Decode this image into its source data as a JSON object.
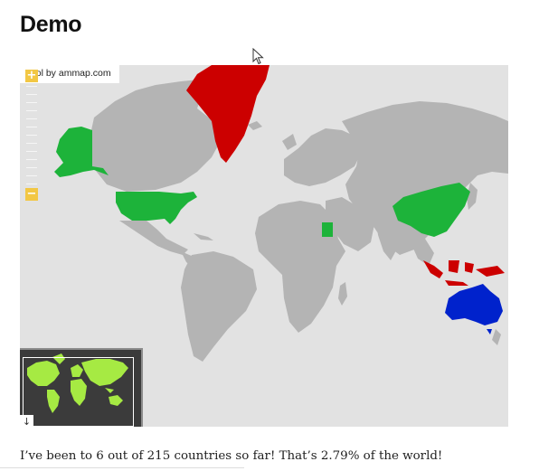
{
  "page": {
    "title": "Demo"
  },
  "map": {
    "credit": "tool by ammap.com",
    "zoom_in_label": "+",
    "zoom_out_label": "−",
    "minimap_toggle_icon": "arrow-down-icon",
    "minimap_toggle_label": "↓",
    "colors": {
      "ocean": "#e2e2e2",
      "land": "#b4b4b4",
      "visited": "#1db33a",
      "greenland": "#cc0000",
      "indonesia": "#cc0000",
      "australia": "#0022cc",
      "zoom_control": "#f2c744",
      "minimap_background": "#3b3b3b",
      "minimap_land": "#a6ea43"
    },
    "highlighted_regions": [
      "Greenland",
      "Alaska",
      "United States",
      "Egypt",
      "China",
      "Indonesia",
      "Australia"
    ]
  },
  "summary": {
    "text": "I’ve been to 6 out of 215 countries so far! That’s 2.79% of the world!"
  }
}
